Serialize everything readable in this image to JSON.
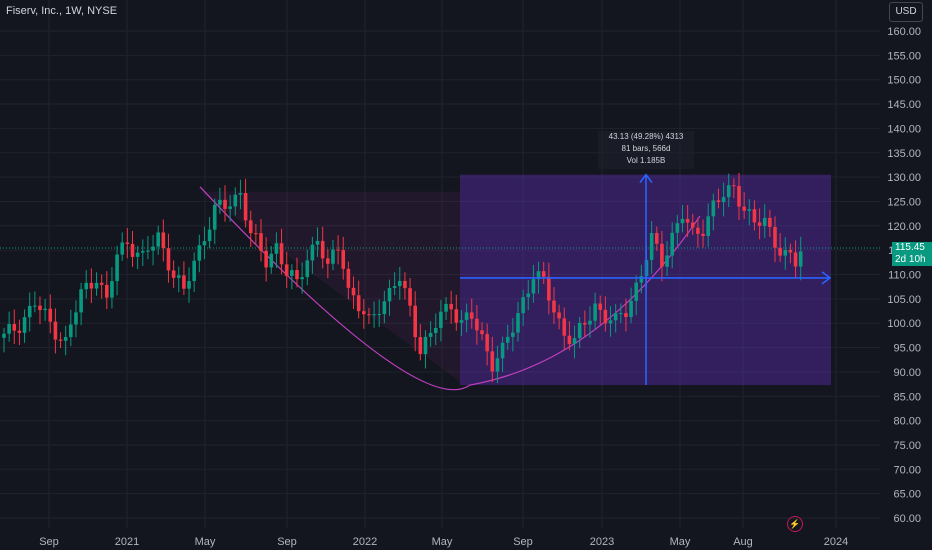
{
  "header": {
    "title": "Fiserv, Inc., 1W, NYSE",
    "currency_label": "USD"
  },
  "last_price": {
    "value": "115.45",
    "countdown": "2d 10h"
  },
  "measure": {
    "change": "43.13 (49.28%) 4313",
    "range": "81 bars, 566d",
    "volume": "Vol 1.185B"
  },
  "colors": {
    "background": "#14161f",
    "up": "#089981",
    "down": "#f23645",
    "measure_fill": "#7b2ff7",
    "arrow": "#2962ff",
    "curve": "#c040c0"
  },
  "icons": {
    "alert": "lightning-icon"
  },
  "chart_data": {
    "type": "candlestick",
    "title": "Fiserv, Inc., 1W, NYSE",
    "ylim": [
      58,
      164
    ],
    "y_ticks": [
      "60.00",
      "65.00",
      "70.00",
      "75.00",
      "80.00",
      "85.00",
      "90.00",
      "95.00",
      "100.00",
      "105.00",
      "110.00",
      "115.00",
      "120.00",
      "125.00",
      "130.00",
      "135.00",
      "140.00",
      "145.00",
      "150.00",
      "155.00",
      "160.00"
    ],
    "x_ticks": [
      "Sep",
      "2021",
      "May",
      "Sep",
      "2022",
      "May",
      "Sep",
      "2023",
      "May",
      "Aug",
      "2024"
    ],
    "grid": true,
    "legend": "none",
    "close_path": [
      [
        0,
        97
      ],
      [
        3,
        100
      ],
      [
        6,
        104
      ],
      [
        9,
        100
      ],
      [
        12,
        96
      ],
      [
        15,
        106
      ],
      [
        18,
        110
      ],
      [
        20,
        104
      ],
      [
        22,
        114
      ],
      [
        24,
        117
      ],
      [
        27,
        113
      ],
      [
        30,
        118
      ],
      [
        33,
        110
      ],
      [
        35,
        106
      ],
      [
        37,
        113
      ],
      [
        39,
        118
      ],
      [
        41,
        123
      ],
      [
        43,
        124
      ],
      [
        45,
        126
      ],
      [
        46,
        127
      ],
      [
        48,
        118
      ],
      [
        51,
        113
      ],
      [
        53,
        116
      ],
      [
        55,
        110
      ],
      [
        57,
        108
      ],
      [
        59,
        114
      ],
      [
        61,
        117
      ],
      [
        63,
        111
      ],
      [
        65,
        116
      ],
      [
        66,
        113
      ],
      [
        67,
        107
      ],
      [
        69,
        103
      ],
      [
        71,
        100
      ],
      [
        73,
        104
      ],
      [
        75,
        106
      ],
      [
        77,
        109
      ],
      [
        79,
        103
      ],
      [
        81,
        95
      ],
      [
        83,
        97
      ],
      [
        85,
        102
      ],
      [
        87,
        104
      ],
      [
        89,
        100
      ],
      [
        91,
        101
      ],
      [
        93,
        97
      ],
      [
        95,
        92
      ],
      [
        97,
        94
      ],
      [
        99,
        99
      ],
      [
        101,
        105
      ],
      [
        103,
        110
      ],
      [
        105,
        108
      ],
      [
        107,
        103
      ],
      [
        109,
        98
      ],
      [
        111,
        96
      ],
      [
        113,
        100
      ],
      [
        115,
        104
      ],
      [
        117,
        101
      ],
      [
        119,
        100
      ],
      [
        121,
        103
      ],
      [
        124,
        110
      ],
      [
        126,
        117
      ],
      [
        128,
        113
      ],
      [
        130,
        118
      ],
      [
        132,
        122
      ],
      [
        134,
        118
      ],
      [
        136,
        120
      ],
      [
        138,
        124
      ],
      [
        140,
        126
      ],
      [
        142,
        128
      ],
      [
        144,
        124
      ],
      [
        146,
        120
      ],
      [
        148,
        121
      ],
      [
        150,
        117
      ],
      [
        152,
        114
      ],
      [
        154,
        112
      ],
      [
        155,
        115
      ]
    ],
    "cursor_candle": {
      "close": 115.45
    }
  }
}
